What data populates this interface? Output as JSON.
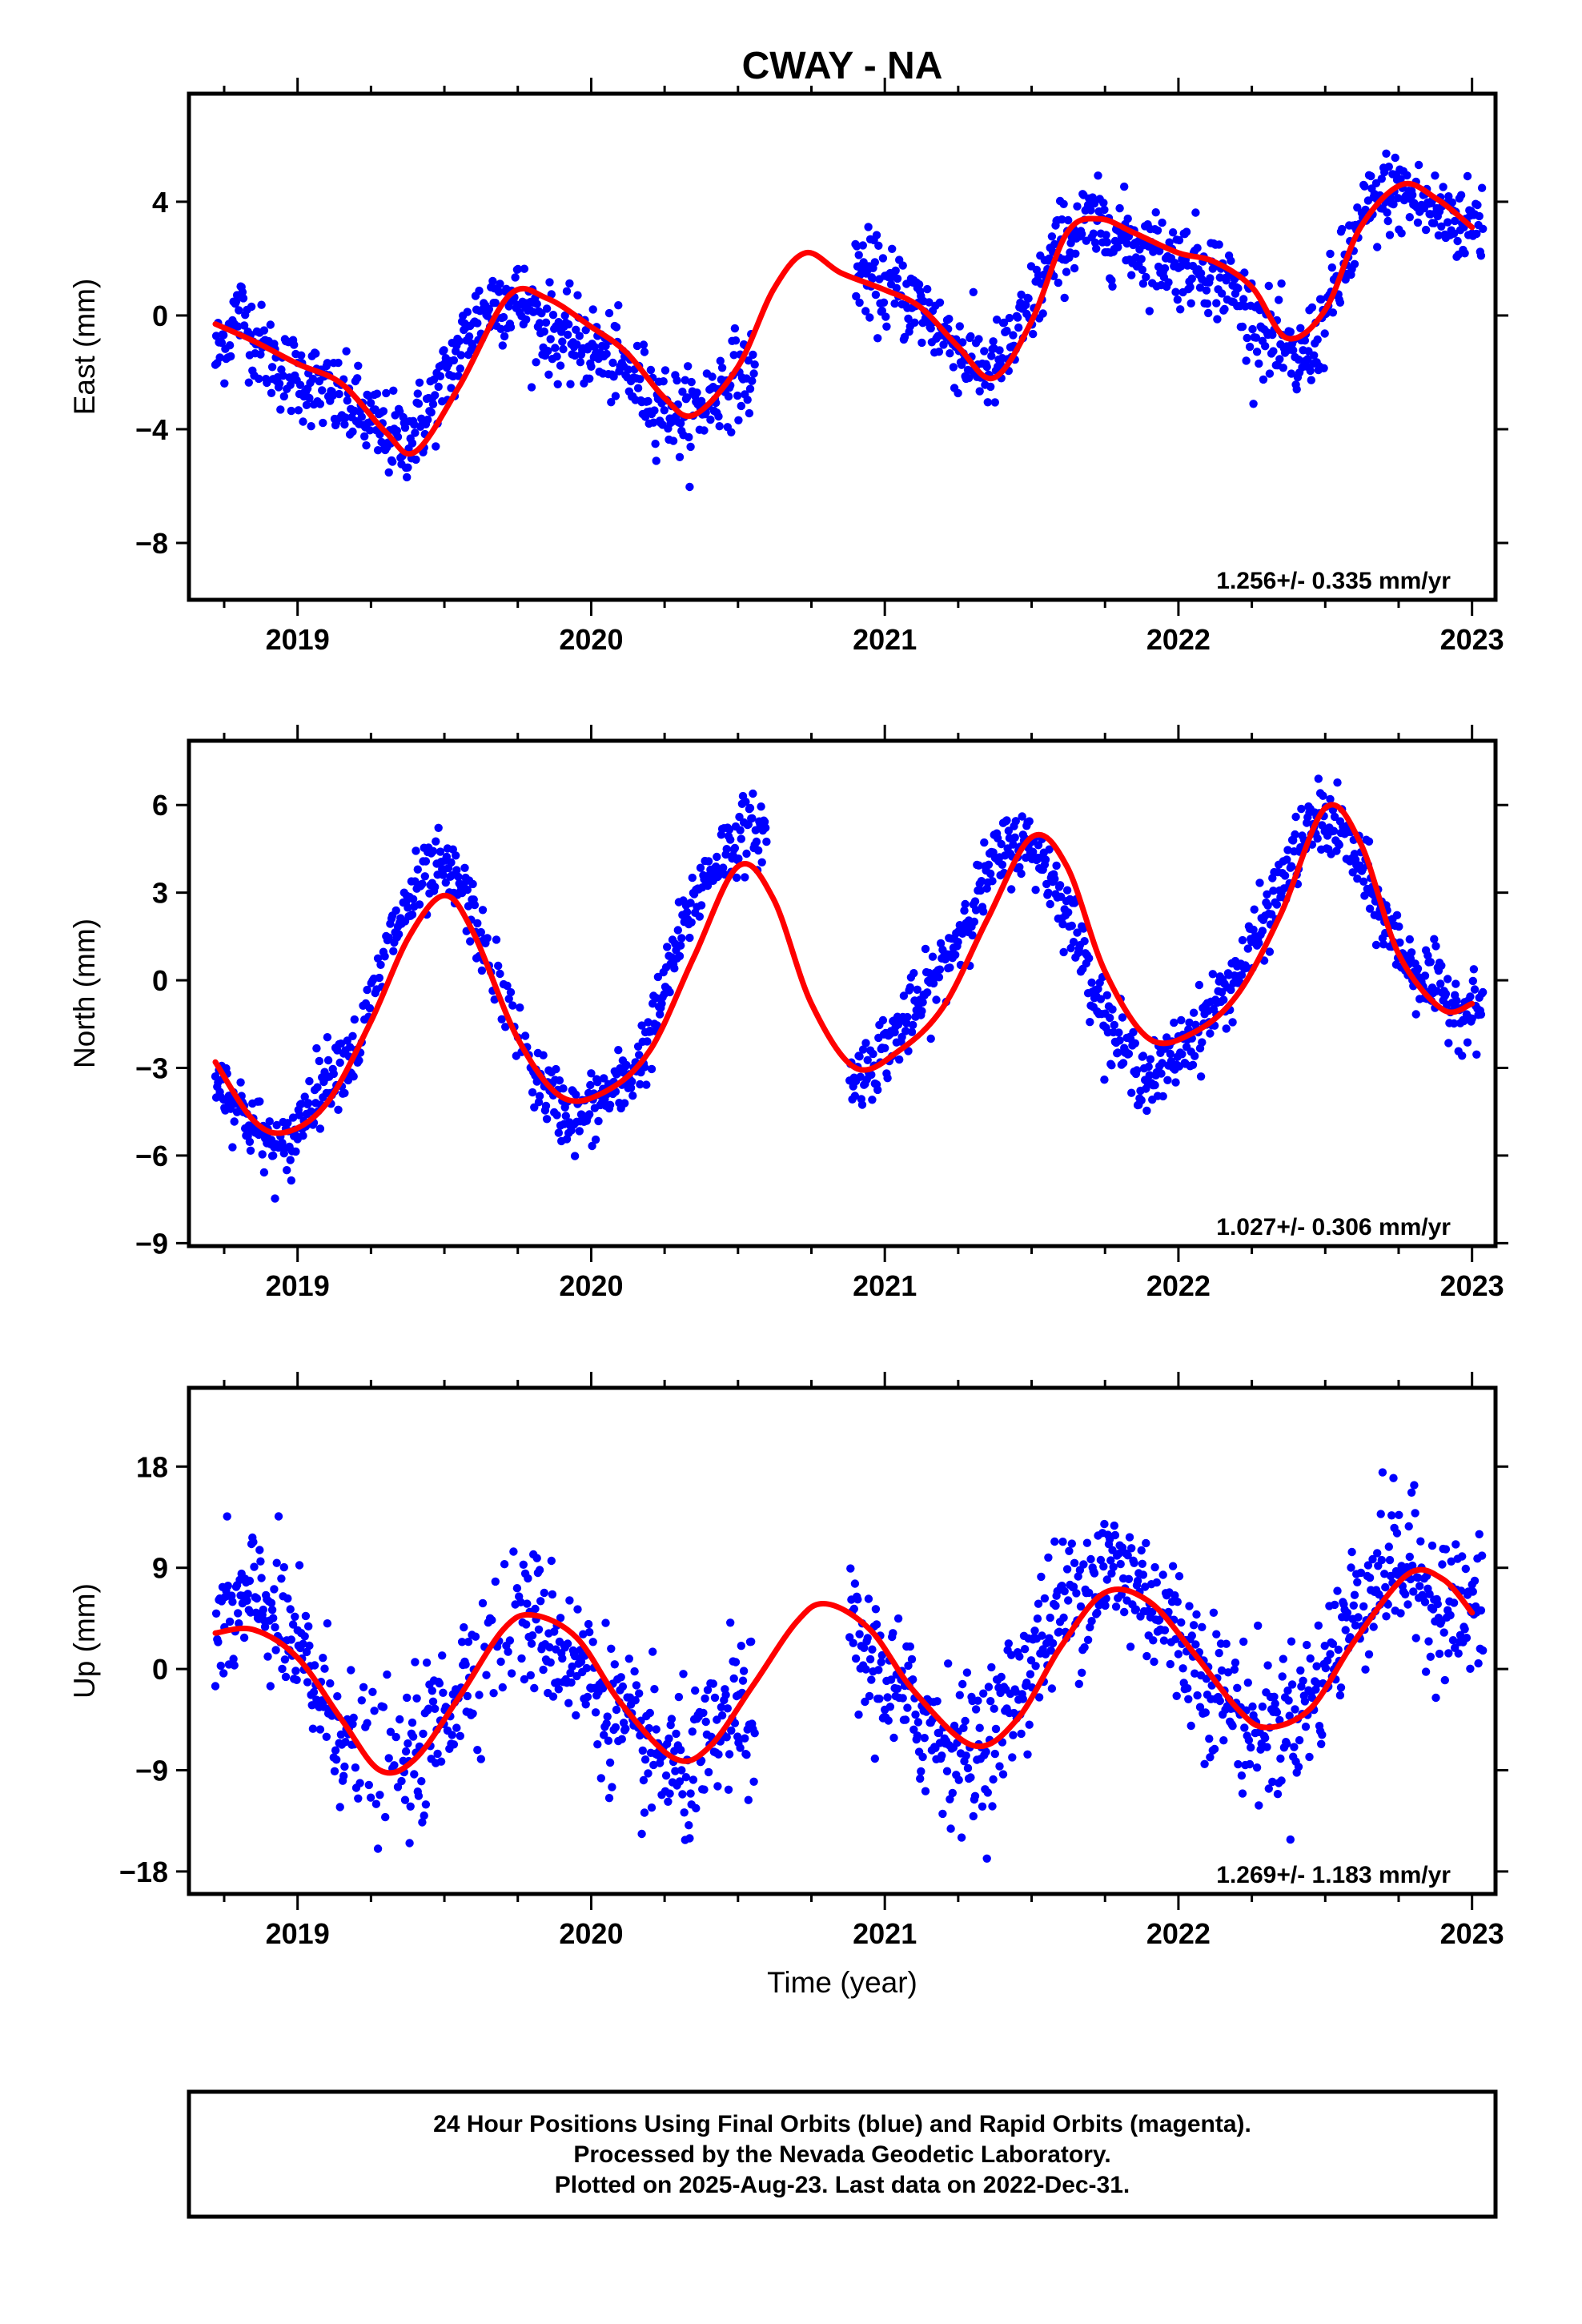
{
  "title": "CWAY - NA",
  "colors": {
    "points": "#0000ff",
    "fit": "#ff0000",
    "axes": "#000000"
  },
  "footer": {
    "line1": "24 Hour Positions Using Final Orbits (blue) and Rapid Orbits (magenta).",
    "line2": "Processed by the Nevada Geodetic Laboratory.",
    "line3": "Plotted on 2025-Aug-23. Last data on 2022-Dec-31."
  },
  "chart_data": [
    {
      "type": "scatter",
      "ylabel": "East (mm)",
      "rate_text": "1.256+/- 0.335 mm/yr",
      "xlim": [
        2018.63,
        2023.08
      ],
      "ylim": [
        -10,
        7.8
      ],
      "yticks": [
        4,
        0,
        -4,
        -8
      ],
      "ytick_labels": [
        "4",
        "0",
        "−4",
        "−8"
      ],
      "xticks": [
        2019,
        2020,
        2021,
        2022,
        2023
      ],
      "xtick_labels": [
        "2019",
        "2020",
        "2021",
        "2022",
        "2023"
      ],
      "series": [
        {
          "kind": "scatter",
          "x": [
            2018.72,
            2018.8,
            2018.88,
            2018.96,
            2019.04,
            2019.12,
            2019.2,
            2019.28,
            2019.36,
            2019.44,
            2019.52,
            2019.6,
            2019.68,
            2019.76,
            2019.84,
            2019.92,
            2020.0,
            2020.08,
            2020.16,
            2020.24,
            2020.32,
            2020.4,
            2020.48,
            2020.9,
            2020.96,
            2021.04,
            2021.12,
            2021.2,
            2021.28,
            2021.36,
            2021.44,
            2021.52,
            2021.6,
            2021.68,
            2021.76,
            2021.84,
            2021.92,
            2022.0,
            2022.08,
            2022.16,
            2022.24,
            2022.32,
            2022.4,
            2022.48,
            2022.56,
            2022.64,
            2022.72,
            2022.8,
            2022.88,
            2022.96
          ],
          "y": [
            -1.5,
            0.2,
            -1.2,
            -2.0,
            -2.3,
            -2.9,
            -3.3,
            -4.1,
            -4.4,
            -3.5,
            -1.9,
            -0.2,
            0.6,
            0.5,
            -0.4,
            -0.9,
            -1.1,
            -1.6,
            -2.4,
            -3.1,
            -3.6,
            -3.0,
            -2.1,
            1.8,
            1.2,
            0.8,
            0.3,
            -0.6,
            -1.5,
            -2.0,
            -1.0,
            0.8,
            2.5,
            3.2,
            3.0,
            2.6,
            2.2,
            1.9,
            1.8,
            1.2,
            0.1,
            -0.9,
            -1.8,
            -0.6,
            1.6,
            3.6,
            4.4,
            4.1,
            3.6,
            3.3
          ]
        },
        {
          "kind": "line",
          "x": [
            2018.72,
            2018.85,
            2019.0,
            2019.15,
            2019.3,
            2019.4,
            2019.55,
            2019.72,
            2019.85,
            2020.0,
            2020.12,
            2020.25,
            2020.35,
            2020.5,
            2020.62,
            2020.73,
            2020.85,
            2021.0,
            2021.12,
            2021.25,
            2021.37,
            2021.5,
            2021.62,
            2021.73,
            2021.85,
            2022.0,
            2022.12,
            2022.25,
            2022.37,
            2022.5,
            2022.62,
            2022.76,
            2022.88,
            2023.0
          ],
          "y": [
            -0.3,
            -0.9,
            -1.7,
            -2.4,
            -4.1,
            -4.8,
            -2.5,
            0.7,
            0.6,
            -0.4,
            -1.3,
            -2.9,
            -3.5,
            -1.8,
            0.9,
            2.2,
            1.5,
            0.9,
            0.3,
            -1.1,
            -2.2,
            -0.2,
            2.9,
            3.4,
            2.9,
            2.2,
            1.9,
            1.0,
            -0.8,
            0.2,
            3.1,
            4.6,
            4.1,
            3.1
          ]
        }
      ]
    },
    {
      "type": "scatter",
      "ylabel": "North (mm)",
      "rate_text": "1.027+/- 0.306 mm/yr",
      "xlim": [
        2018.63,
        2023.08
      ],
      "ylim": [
        -9.1,
        8.2
      ],
      "yticks": [
        6,
        3,
        0,
        -3,
        -6,
        -9
      ],
      "ytick_labels": [
        "6",
        "3",
        "0",
        "−3",
        "−6",
        "−9"
      ],
      "xticks": [
        2019,
        2020,
        2021,
        2022,
        2023
      ],
      "xtick_labels": [
        "2019",
        "2020",
        "2021",
        "2022",
        "2023"
      ],
      "series": [
        {
          "kind": "scatter",
          "x": [
            2018.72,
            2018.8,
            2018.88,
            2018.96,
            2019.04,
            2019.12,
            2019.2,
            2019.32,
            2019.4,
            2019.48,
            2019.56,
            2019.64,
            2019.8,
            2019.88,
            2019.96,
            2020.04,
            2020.12,
            2020.2,
            2020.28,
            2020.36,
            2020.44,
            2020.52,
            2020.88,
            2020.96,
            2021.04,
            2021.12,
            2021.2,
            2021.28,
            2021.36,
            2021.44,
            2021.52,
            2021.6,
            2021.68,
            2021.76,
            2021.84,
            2021.92,
            2022.0,
            2022.08,
            2022.16,
            2022.24,
            2022.32,
            2022.4,
            2022.48,
            2022.56,
            2022.64,
            2022.72,
            2022.8,
            2022.88,
            2022.96
          ],
          "y": [
            -3.2,
            -4.3,
            -5.4,
            -6.0,
            -4.1,
            -3.0,
            -2.4,
            1.5,
            3.0,
            3.8,
            3.2,
            1.0,
            -3.1,
            -4.2,
            -4.8,
            -4.0,
            -3.5,
            -2.0,
            0.8,
            3.0,
            4.3,
            5.1,
            -3.5,
            -2.8,
            -1.8,
            -0.8,
            0.5,
            2.2,
            3.8,
            4.8,
            4.4,
            2.9,
            0.8,
            -1.5,
            -2.8,
            -3.4,
            -2.4,
            -1.5,
            -0.4,
            0.9,
            2.6,
            4.4,
            5.6,
            5.0,
            3.4,
            1.6,
            0.4,
            -0.3,
            -1.0
          ]
        },
        {
          "kind": "line",
          "x": [
            2018.72,
            2018.85,
            2018.96,
            2019.1,
            2019.25,
            2019.38,
            2019.5,
            2019.6,
            2019.75,
            2019.9,
            2020.05,
            2020.2,
            2020.35,
            2020.5,
            2020.62,
            2020.75,
            2020.9,
            2021.05,
            2021.2,
            2021.35,
            2021.5,
            2021.62,
            2021.75,
            2021.9,
            2022.05,
            2022.2,
            2022.35,
            2022.5,
            2022.62,
            2022.75,
            2022.9,
            2023.0
          ],
          "y": [
            -2.8,
            -4.8,
            -5.2,
            -4.2,
            -1.4,
            1.5,
            2.9,
            1.6,
            -2.0,
            -4.0,
            -3.8,
            -2.4,
            0.8,
            3.9,
            2.8,
            -0.8,
            -3.0,
            -2.4,
            -0.9,
            2.1,
            4.9,
            3.9,
            0.3,
            -2.0,
            -1.8,
            -0.5,
            2.3,
            5.9,
            4.7,
            0.9,
            -1.0,
            -0.8
          ]
        }
      ]
    },
    {
      "type": "scatter",
      "ylabel": "Up (mm)",
      "rate_text": "1.269+/- 1.183 mm/yr",
      "xlim": [
        2018.63,
        2023.08
      ],
      "ylim": [
        -20,
        25
      ],
      "yticks": [
        18,
        9,
        0,
        -9,
        -18
      ],
      "ytick_labels": [
        "18",
        "9",
        "0",
        "−9",
        "−18"
      ],
      "xticks": [
        2019,
        2020,
        2021,
        2022,
        2023
      ],
      "xtick_labels": [
        "2019",
        "2020",
        "2021",
        "2022",
        "2023"
      ],
      "series": [
        {
          "kind": "scatter",
          "x": [
            2018.72,
            2018.8,
            2018.88,
            2018.96,
            2019.04,
            2019.12,
            2019.2,
            2019.36,
            2019.44,
            2019.52,
            2019.6,
            2019.76,
            2019.84,
            2019.92,
            2020.0,
            2020.08,
            2020.16,
            2020.24,
            2020.32,
            2020.4,
            2020.48,
            2020.88,
            2020.96,
            2021.04,
            2021.12,
            2021.2,
            2021.28,
            2021.36,
            2021.44,
            2021.52,
            2021.6,
            2021.68,
            2021.76,
            2021.84,
            2021.92,
            2022.0,
            2022.08,
            2022.16,
            2022.24,
            2022.32,
            2022.4,
            2022.48,
            2022.56,
            2022.64,
            2022.72,
            2022.8,
            2022.88,
            2022.96
          ],
          "y": [
            3.5,
            5.0,
            6.5,
            3.0,
            -0.5,
            -4.0,
            -7.5,
            -9.0,
            -6.5,
            -3.0,
            1.0,
            5.0,
            3.5,
            1.5,
            -1.0,
            -4.0,
            -7.0,
            -8.0,
            -9.5,
            -7.5,
            -4.0,
            2.5,
            0.5,
            -2.0,
            -4.5,
            -6.0,
            -7.5,
            -6.0,
            -2.5,
            2.0,
            5.5,
            7.5,
            9.0,
            8.0,
            6.0,
            3.0,
            0.0,
            -2.5,
            -5.0,
            -5.5,
            -4.0,
            -1.5,
            3.5,
            7.0,
            9.5,
            8.5,
            6.0,
            5.0
          ]
        },
        {
          "kind": "line",
          "x": [
            2018.72,
            2018.85,
            2019.0,
            2019.15,
            2019.28,
            2019.4,
            2019.55,
            2019.7,
            2019.8,
            2019.95,
            2020.1,
            2020.28,
            2020.4,
            2020.55,
            2020.7,
            2020.8,
            2020.95,
            2021.1,
            2021.3,
            2021.45,
            2021.6,
            2021.75,
            2021.9,
            2022.05,
            2022.2,
            2022.3,
            2022.45,
            2022.6,
            2022.78,
            2022.9,
            2023.0
          ],
          "y": [
            3.2,
            3.5,
            1.0,
            -4.5,
            -9.0,
            -8.0,
            -2.5,
            3.5,
            4.8,
            2.8,
            -3.0,
            -7.9,
            -7.0,
            -1.5,
            4.2,
            5.8,
            3.5,
            -2.0,
            -6.8,
            -4.5,
            2.0,
            6.8,
            6.0,
            1.5,
            -3.5,
            -5.2,
            -3.5,
            2.5,
            8.4,
            8.0,
            5.0
          ]
        }
      ]
    }
  ],
  "xlabel": "Time (year)"
}
